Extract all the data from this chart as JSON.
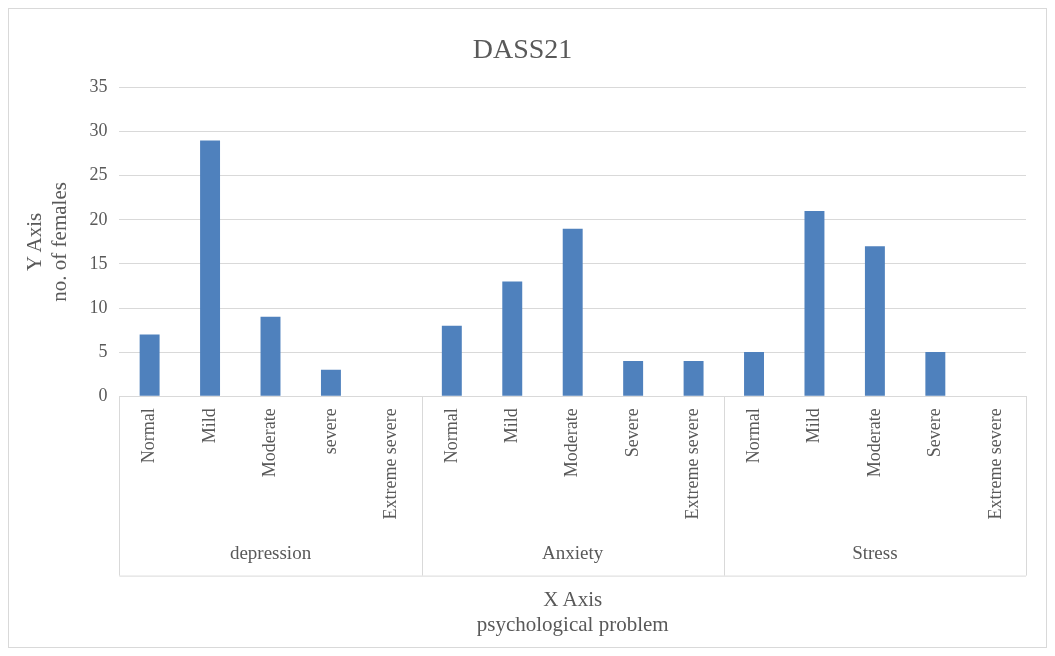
{
  "chart_data": {
    "type": "bar",
    "title": "DASS21",
    "xlabel": "X Axis\npsychological problem",
    "ylabel": "Y Axis\nno. of females",
    "categories": [
      "Normal",
      "Mild",
      "Moderate",
      "severe",
      "Extreme severe",
      "Normal",
      "Mild",
      "Moderate",
      "Severe",
      "Extreme severe",
      "Normal",
      "Mild",
      "Moderate",
      "Severe",
      "Extreme severe"
    ],
    "values": [
      7,
      29,
      9,
      3,
      0,
      8,
      13,
      19,
      4,
      4,
      5,
      21,
      17,
      5,
      0
    ],
    "color": "#4f81bd",
    "annotations": [
      "depression",
      "Anxiety",
      "Stress"
    ],
    "ylim": [
      0,
      35
    ],
    "yticks": [
      0,
      5,
      10,
      15,
      20,
      25,
      30,
      35
    ],
    "grid": "y",
    "legend": false
  }
}
